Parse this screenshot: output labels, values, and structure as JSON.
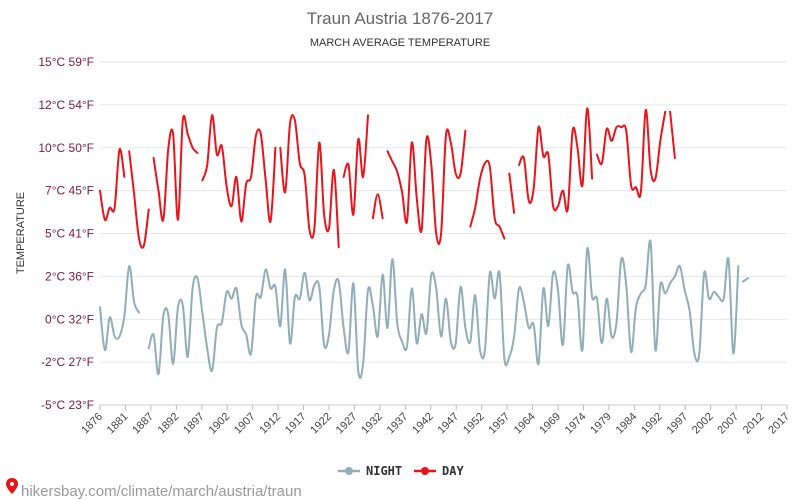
{
  "chart_data": {
    "type": "line",
    "title": "Traun Austria 1876-2017",
    "subtitle": "MARCH AVERAGE TEMPERATURE",
    "ylabel": "TEMPERATURE",
    "ylim": [
      -5,
      15
    ],
    "y_ticks": [
      {
        "value": 15,
        "label": "15°C 59°F"
      },
      {
        "value": 12.5,
        "label": "12°C 54°F"
      },
      {
        "value": 10,
        "label": "10°C 50°F"
      },
      {
        "value": 7.5,
        "label": "7°C 45°F"
      },
      {
        "value": 5,
        "label": "5°C 41°F"
      },
      {
        "value": 2.5,
        "label": "2°C 36°F"
      },
      {
        "value": 0,
        "label": "0°C 32°F"
      },
      {
        "value": -2.5,
        "label": "-2°C 27°F"
      },
      {
        "value": -5,
        "label": "-5°C 23°F"
      }
    ],
    "xlim": [
      1876,
      2017
    ],
    "x_ticks": [
      1876,
      1881,
      1887,
      1892,
      1897,
      1902,
      1907,
      1912,
      1917,
      1922,
      1927,
      1932,
      1937,
      1942,
      1947,
      1952,
      1957,
      1964,
      1969,
      1974,
      1979,
      1984,
      1992,
      1997,
      2002,
      2007,
      2012,
      2017
    ],
    "grid": true,
    "legend_position": "bottom",
    "series": [
      {
        "name": "NIGHT",
        "color": "#90adb8",
        "points": [
          [
            1876,
            0.7
          ],
          [
            1877,
            -1.8
          ],
          [
            1878,
            0.1
          ],
          [
            1879,
            -1.0
          ],
          [
            1880,
            -1.0
          ],
          [
            1881,
            0.2
          ],
          [
            1882,
            3.1
          ],
          [
            1883,
            1.0
          ],
          [
            1884,
            0.4
          ],
          null,
          [
            1886,
            -1.7
          ],
          [
            1887,
            -0.9
          ],
          [
            1888,
            -3.2
          ],
          [
            1889,
            0.2
          ],
          [
            1890,
            0.3
          ],
          [
            1891,
            -2.6
          ],
          [
            1892,
            0.7
          ],
          [
            1893,
            0.8
          ],
          [
            1894,
            -2.2
          ],
          [
            1895,
            1.8
          ],
          [
            1896,
            2.4
          ],
          [
            1897,
            0.4
          ],
          [
            1898,
            -1.7
          ],
          [
            1899,
            -3.0
          ],
          [
            1900,
            -0.5
          ],
          [
            1901,
            -0.2
          ],
          [
            1902,
            1.6
          ],
          [
            1903,
            1.2
          ],
          [
            1904,
            1.8
          ],
          [
            1905,
            -0.3
          ],
          [
            1906,
            -0.9
          ],
          [
            1907,
            -2.0
          ],
          [
            1908,
            1.3
          ],
          [
            1909,
            1.3
          ],
          [
            1910,
            2.9
          ],
          [
            1911,
            1.8
          ],
          [
            1912,
            1.9
          ],
          [
            1913,
            -0.4
          ],
          [
            1914,
            2.9
          ],
          [
            1915,
            -1.4
          ],
          [
            1916,
            1.3
          ],
          [
            1917,
            1.2
          ],
          [
            1918,
            2.7
          ],
          [
            1919,
            1.1
          ],
          [
            1920,
            2.0
          ],
          [
            1921,
            1.9
          ],
          [
            1922,
            -1.5
          ],
          [
            1923,
            -0.9
          ],
          [
            1924,
            1.7
          ],
          [
            1925,
            2.2
          ],
          [
            1926,
            -0.5
          ],
          [
            1927,
            -1.9
          ],
          [
            1928,
            2.1
          ],
          [
            1929,
            -3.0
          ],
          [
            1930,
            -2.6
          ],
          [
            1931,
            1.7
          ],
          [
            1932,
            0.8
          ],
          [
            1933,
            -1.0
          ],
          [
            1934,
            2.6
          ],
          [
            1935,
            -0.5
          ],
          [
            1936,
            3.5
          ],
          [
            1937,
            -0.2
          ],
          [
            1938,
            -1.3
          ],
          [
            1939,
            -1.6
          ],
          [
            1940,
            1.8
          ],
          [
            1941,
            -1.4
          ],
          [
            1942,
            0.3
          ],
          [
            1943,
            -0.8
          ],
          [
            1944,
            2.6
          ],
          [
            1945,
            1.8
          ],
          [
            1946,
            -1.0
          ],
          [
            1947,
            1.2
          ],
          [
            1948,
            -1.3
          ],
          [
            1949,
            -1.4
          ],
          [
            1950,
            1.9
          ],
          [
            1951,
            -0.5
          ],
          [
            1952,
            -1.3
          ],
          [
            1953,
            1.4
          ],
          [
            1954,
            -1.8
          ],
          [
            1955,
            -1.8
          ],
          [
            1956,
            2.7
          ],
          [
            1957,
            1.2
          ],
          [
            1958,
            2.7
          ],
          [
            1959,
            -2.3
          ],
          [
            1960,
            -2.2
          ],
          [
            1961,
            -1.0
          ],
          [
            1962,
            1.8
          ],
          [
            1963,
            1.0
          ],
          [
            1964,
            -0.5
          ],
          [
            1965,
            -0.3
          ],
          [
            1966,
            -2.6
          ],
          [
            1967,
            1.8
          ],
          [
            1968,
            -0.4
          ],
          [
            1969,
            2.7
          ],
          [
            1970,
            1.7
          ],
          [
            1971,
            -1.5
          ],
          [
            1972,
            3.1
          ],
          [
            1973,
            1.6
          ],
          [
            1974,
            1.3
          ],
          [
            1975,
            -1.8
          ],
          [
            1976,
            4.1
          ],
          [
            1977,
            1.3
          ],
          [
            1978,
            1.2
          ],
          [
            1979,
            -1.4
          ],
          [
            1980,
            1.2
          ],
          [
            1981,
            -1.0
          ],
          [
            1982,
            -0.2
          ],
          [
            1983,
            3.5
          ],
          [
            1984,
            2.0
          ],
          [
            1985,
            -1.9
          ],
          [
            1986,
            0.7
          ],
          [
            1987,
            1.5
          ],
          [
            1988,
            2.0
          ],
          [
            1989,
            4.5
          ],
          [
            1990,
            -1.8
          ],
          [
            1991,
            2.0
          ],
          [
            1992,
            1.5
          ],
          [
            1993,
            2.1
          ],
          [
            1994,
            2.5
          ],
          [
            1995,
            3.1
          ],
          [
            1996,
            1.7
          ],
          [
            1997,
            0.5
          ],
          [
            1998,
            -2.0
          ],
          [
            1999,
            -2.0
          ],
          [
            2000,
            2.7
          ],
          [
            2001,
            1.2
          ],
          [
            2002,
            1.6
          ],
          [
            2003,
            1.3
          ],
          [
            2004,
            1.2
          ],
          [
            2005,
            3.5
          ],
          [
            2006,
            -2.0
          ],
          [
            2007,
            3.1
          ],
          null,
          [
            2008,
            2.2
          ],
          [
            2009,
            2.4
          ]
        ]
      },
      {
        "name": "DAY",
        "color": "#e8141c",
        "points": [
          [
            1876,
            7.5
          ],
          [
            1877,
            5.8
          ],
          [
            1878,
            6.5
          ],
          [
            1879,
            6.5
          ],
          [
            1880,
            9.9
          ],
          [
            1881,
            8.3
          ],
          null,
          [
            1882,
            9.8
          ],
          [
            1883,
            7.3
          ],
          [
            1884,
            4.7
          ],
          [
            1885,
            4.3
          ],
          [
            1886,
            6.4
          ],
          null,
          [
            1887,
            9.4
          ],
          [
            1888,
            7.5
          ],
          [
            1889,
            5.8
          ],
          [
            1890,
            9.9
          ],
          [
            1891,
            10.8
          ],
          [
            1892,
            5.8
          ],
          [
            1893,
            11.6
          ],
          [
            1894,
            10.8
          ],
          [
            1895,
            10.0
          ],
          [
            1896,
            9.7
          ],
          null,
          [
            1897,
            8.1
          ],
          [
            1898,
            9.0
          ],
          [
            1899,
            11.9
          ],
          [
            1900,
            9.6
          ],
          [
            1901,
            10.1
          ],
          [
            1902,
            7.7
          ],
          [
            1903,
            6.6
          ],
          [
            1904,
            8.3
          ],
          [
            1905,
            5.7
          ],
          [
            1906,
            7.9
          ],
          [
            1907,
            8.3
          ],
          [
            1908,
            10.7
          ],
          [
            1909,
            10.8
          ],
          [
            1910,
            8.1
          ],
          [
            1911,
            5.7
          ],
          [
            1912,
            10.0
          ],
          null,
          [
            1913,
            10.0
          ],
          [
            1914,
            7.4
          ],
          [
            1915,
            11.4
          ],
          [
            1916,
            11.6
          ],
          [
            1917,
            9.1
          ],
          [
            1918,
            8.4
          ],
          [
            1919,
            5.2
          ],
          [
            1920,
            5.3
          ],
          [
            1921,
            10.3
          ],
          [
            1922,
            6.1
          ],
          [
            1923,
            5.3
          ],
          [
            1924,
            8.7
          ],
          [
            1925,
            4.2
          ],
          null,
          [
            1926,
            8.3
          ],
          [
            1927,
            9.0
          ],
          [
            1928,
            6.1
          ],
          [
            1929,
            10.5
          ],
          [
            1930,
            8.3
          ],
          [
            1931,
            11.9
          ],
          null,
          [
            1932,
            5.9
          ],
          [
            1933,
            7.3
          ],
          [
            1934,
            5.9
          ],
          null,
          [
            1935,
            9.8
          ],
          [
            1936,
            9.2
          ],
          [
            1937,
            8.6
          ],
          [
            1938,
            7.4
          ],
          [
            1939,
            5.7
          ],
          [
            1940,
            10.3
          ],
          [
            1941,
            7.1
          ],
          [
            1942,
            5.2
          ],
          [
            1943,
            10.5
          ],
          [
            1944,
            9.0
          ],
          [
            1945,
            5.0
          ],
          [
            1946,
            5.0
          ],
          [
            1947,
            10.7
          ],
          [
            1948,
            10.3
          ],
          [
            1949,
            8.5
          ],
          [
            1950,
            8.5
          ],
          [
            1951,
            11.0
          ],
          null,
          [
            1952,
            5.4
          ],
          [
            1953,
            6.5
          ],
          [
            1954,
            8.2
          ],
          [
            1955,
            9.1
          ],
          [
            1956,
            8.9
          ],
          [
            1957,
            5.9
          ],
          [
            1958,
            5.4
          ],
          [
            1959,
            4.7
          ],
          null,
          [
            1960,
            8.5
          ],
          [
            1961,
            6.2
          ],
          null,
          [
            1962,
            9.0
          ],
          [
            1963,
            9.4
          ],
          [
            1964,
            6.9
          ],
          [
            1965,
            7.6
          ],
          [
            1966,
            11.2
          ],
          [
            1967,
            9.5
          ],
          [
            1968,
            9.6
          ],
          [
            1969,
            6.6
          ],
          [
            1970,
            6.6
          ],
          [
            1971,
            7.5
          ],
          [
            1972,
            6.4
          ],
          [
            1973,
            11.0
          ],
          [
            1974,
            10.0
          ],
          [
            1975,
            7.8
          ],
          [
            1976,
            12.3
          ],
          [
            1977,
            8.2
          ],
          null,
          [
            1978,
            9.6
          ],
          [
            1979,
            9.1
          ],
          [
            1980,
            11.1
          ],
          [
            1981,
            10.4
          ],
          [
            1982,
            11.2
          ],
          [
            1983,
            11.2
          ],
          [
            1984,
            11.0
          ],
          [
            1985,
            7.8
          ],
          [
            1986,
            7.7
          ],
          [
            1987,
            7.4
          ],
          [
            1988,
            12.2
          ],
          [
            1989,
            8.7
          ],
          [
            1990,
            8.2
          ],
          [
            1991,
            10.4
          ],
          [
            1992,
            12.1
          ],
          null,
          [
            1993,
            12.1
          ],
          [
            1994,
            9.4
          ]
        ]
      }
    ]
  },
  "legend": {
    "night_label": "NIGHT",
    "day_label": "DAY"
  },
  "watermark": "hikersbay.com/climate/march/austria/traun",
  "colors": {
    "night": "#90adb8",
    "day": "#e8141c",
    "grid": "#e6e6e6",
    "ytick": "#7a1a3a",
    "watermark_pin": "#e8141c"
  }
}
